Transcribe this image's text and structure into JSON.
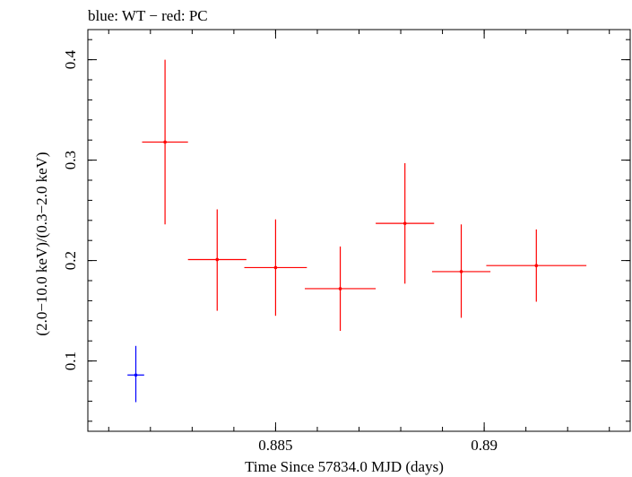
{
  "chart_data": {
    "type": "scatter",
    "title": "blue: WT − red: PC",
    "xlabel": "Time Since 57834.0 MJD (days)",
    "ylabel": "(2.0−10.0 keV)/(0.3−2.0 keV)",
    "xlim": [
      0.8805,
      0.8935
    ],
    "ylim": [
      0.03,
      0.43
    ],
    "x_ticks": [
      {
        "value": 0.885,
        "label": "0.885"
      },
      {
        "value": 0.89,
        "label": "0.89"
      }
    ],
    "y_ticks": [
      {
        "value": 0.1,
        "label": "0.1"
      },
      {
        "value": 0.2,
        "label": "0.2"
      },
      {
        "value": 0.3,
        "label": "0.3"
      },
      {
        "value": 0.4,
        "label": "0.4"
      }
    ],
    "x_minor_step": 0.001,
    "y_minor_step": 0.02,
    "series": [
      {
        "name": "WT",
        "color": "#0000ff",
        "points": [
          {
            "x": 0.88165,
            "xerr": 0.0002,
            "y": 0.086,
            "ylo": 0.059,
            "yhi": 0.115
          }
        ]
      },
      {
        "name": "PC",
        "color": "#ff0000",
        "points": [
          {
            "x": 0.88235,
            "xerr": 0.00055,
            "y": 0.318,
            "ylo": 0.236,
            "yhi": 0.4
          },
          {
            "x": 0.8836,
            "xerr": 0.0007,
            "y": 0.201,
            "ylo": 0.15,
            "yhi": 0.251
          },
          {
            "x": 0.885,
            "xerr": 0.00075,
            "y": 0.193,
            "ylo": 0.145,
            "yhi": 0.241
          },
          {
            "x": 0.88655,
            "xerr": 0.00085,
            "y": 0.172,
            "ylo": 0.13,
            "yhi": 0.214
          },
          {
            "x": 0.8881,
            "xerr": 0.0007,
            "y": 0.237,
            "ylo": 0.177,
            "yhi": 0.297
          },
          {
            "x": 0.88945,
            "xerr": 0.0007,
            "y": 0.189,
            "ylo": 0.143,
            "yhi": 0.236
          },
          {
            "x": 0.89125,
            "xerr": 0.0012,
            "y": 0.195,
            "ylo": 0.159,
            "yhi": 0.231
          }
        ]
      }
    ]
  }
}
